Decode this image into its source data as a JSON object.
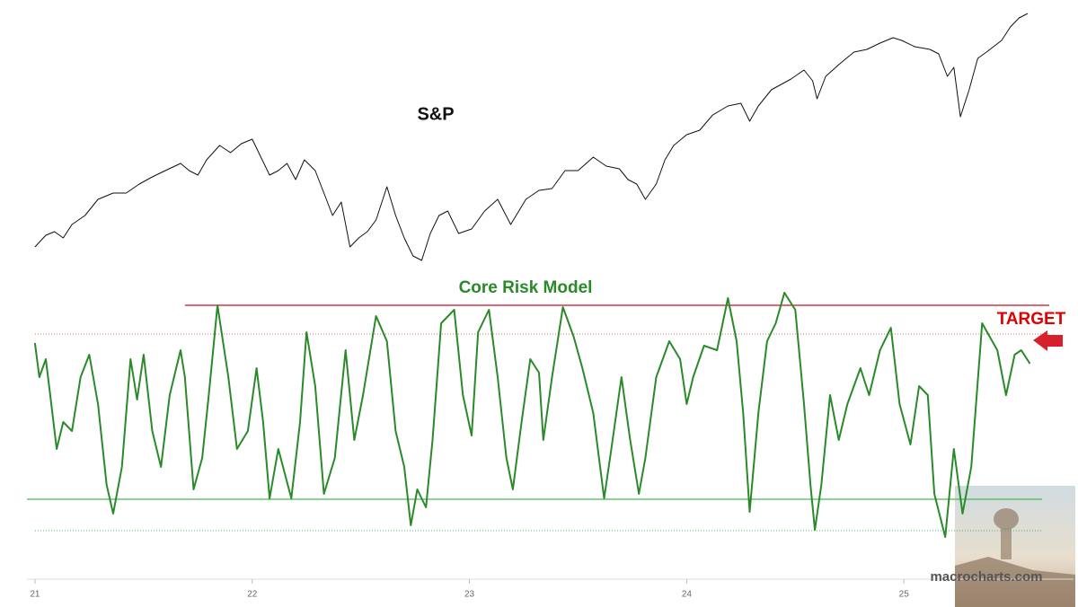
{
  "chart_data": [
    {
      "type": "line",
      "title": "S&P",
      "xlim": [
        20.963,
        25.636
      ],
      "ylim": [
        0,
        300
      ],
      "series": [
        {
          "name": "S&P",
          "color": "#111111",
          "x": [
            21.0,
            21.05,
            21.09,
            21.13,
            21.17,
            21.23,
            21.29,
            21.36,
            21.42,
            21.48,
            21.54,
            21.6,
            21.67,
            21.71,
            21.75,
            21.79,
            21.85,
            21.9,
            21.95,
            22.0,
            22.03,
            22.08,
            22.12,
            22.16,
            22.2,
            22.24,
            22.29,
            22.33,
            22.37,
            22.41,
            22.45,
            22.49,
            22.53,
            22.57,
            22.62,
            22.66,
            22.7,
            22.74,
            22.78,
            22.82,
            22.86,
            22.9,
            22.95,
            23.01,
            23.07,
            23.13,
            23.19,
            23.26,
            23.32,
            23.38,
            23.44,
            23.5,
            23.57,
            23.63,
            23.69,
            23.73,
            23.77,
            23.81,
            23.86,
            23.9,
            23.94,
            24.0,
            24.06,
            24.12,
            24.19,
            24.25,
            24.29,
            24.33,
            24.39,
            24.48,
            24.54,
            24.58,
            24.6,
            24.64,
            24.7,
            24.77,
            24.83,
            24.89,
            24.95,
            24.99,
            25.05,
            25.12,
            25.16,
            25.2,
            25.23,
            25.26,
            25.3,
            25.34,
            25.38,
            25.45,
            25.49,
            25.53,
            25.57
          ],
          "values": [
            25,
            38,
            42,
            35,
            50,
            60,
            78,
            85,
            85,
            95,
            103,
            110,
            118,
            110,
            105,
            122,
            138,
            130,
            140,
            145,
            130,
            105,
            110,
            118,
            100,
            122,
            110,
            85,
            60,
            75,
            25,
            35,
            42,
            55,
            92,
            60,
            35,
            15,
            10,
            40,
            60,
            65,
            40,
            45,
            65,
            78,
            50,
            78,
            88,
            90,
            110,
            110,
            125,
            115,
            112,
            100,
            95,
            78,
            95,
            122,
            138,
            150,
            155,
            172,
            182,
            185,
            165,
            182,
            200,
            212,
            222,
            210,
            190,
            215,
            228,
            242,
            245,
            252,
            258,
            255,
            248,
            245,
            240,
            215,
            225,
            170,
            200,
            235,
            242,
            255,
            270,
            280,
            285
          ]
        }
      ]
    },
    {
      "type": "line",
      "title": "Core Risk Model",
      "xlim": [
        20.963,
        25.636
      ],
      "ylim": [
        0,
        300
      ],
      "xticks": [
        21,
        22,
        23,
        24,
        25
      ],
      "series": [
        {
          "name": "Core Risk Model",
          "color": "#2a8a2a",
          "x": [
            21.0,
            21.02,
            21.05,
            21.07,
            21.1,
            21.13,
            21.17,
            21.21,
            21.25,
            21.29,
            21.33,
            21.36,
            21.4,
            21.44,
            21.47,
            21.5,
            21.54,
            21.58,
            21.62,
            21.67,
            21.69,
            21.73,
            21.77,
            21.8,
            21.84,
            21.89,
            21.93,
            21.98,
            22.02,
            22.05,
            22.08,
            22.12,
            22.18,
            22.22,
            22.25,
            22.29,
            22.33,
            22.38,
            22.43,
            22.47,
            22.51,
            22.57,
            22.62,
            22.66,
            22.7,
            22.73,
            22.76,
            22.8,
            22.83,
            22.87,
            22.93,
            22.97,
            23.01,
            23.04,
            23.09,
            23.13,
            23.17,
            23.2,
            23.24,
            23.28,
            23.32,
            23.34,
            23.38,
            23.43,
            23.48,
            23.52,
            23.57,
            23.62,
            23.65,
            23.7,
            23.74,
            23.78,
            23.81,
            23.86,
            23.92,
            23.97,
            24.0,
            24.03,
            24.08,
            24.14,
            24.19,
            24.23,
            24.26,
            24.29,
            24.33,
            24.37,
            24.41,
            24.45,
            24.5,
            24.54,
            24.57,
            24.59,
            24.62,
            24.66,
            24.7,
            24.74,
            24.8,
            24.84,
            24.89,
            24.94,
            24.98,
            25.03,
            25.07,
            25.11,
            25.14,
            25.19,
            25.23,
            25.27,
            25.31,
            25.36,
            25.43,
            25.47,
            25.51,
            25.54,
            25.58
          ],
          "values": [
            238,
            200,
            220,
            180,
            120,
            150,
            140,
            200,
            225,
            170,
            80,
            48,
            100,
            220,
            175,
            225,
            140,
            100,
            180,
            230,
            200,
            75,
            110,
            180,
            280,
            200,
            120,
            140,
            210,
            150,
            65,
            120,
            65,
            150,
            250,
            190,
            70,
            110,
            230,
            130,
            180,
            268,
            240,
            140,
            100,
            35,
            75,
            55,
            130,
            260,
            275,
            180,
            135,
            250,
            275,
            200,
            110,
            75,
            150,
            220,
            205,
            130,
            200,
            278,
            245,
            210,
            160,
            65,
            115,
            200,
            130,
            70,
            110,
            200,
            240,
            220,
            170,
            200,
            235,
            230,
            288,
            240,
            160,
            50,
            160,
            240,
            260,
            294,
            275,
            170,
            80,
            30,
            80,
            180,
            130,
            170,
            210,
            180,
            230,
            255,
            170,
            125,
            190,
            180,
            70,
            22,
            120,
            48,
            100,
            260,
            230,
            180,
            225,
            230,
            215
          ]
        }
      ],
      "reference_lines": [
        {
          "value": 280,
          "color": "#cc1122",
          "style": "solid",
          "x_start": 21.69
        },
        {
          "value": 248,
          "color": "#e06666",
          "style": "dotted",
          "x_start": 21.0
        },
        {
          "value": 64,
          "color": "#44bb55",
          "style": "solid",
          "x_start": 20.963
        },
        {
          "value": 29,
          "color": "#55aa66",
          "style": "dotted",
          "x_start": 21.0
        }
      ],
      "annotations": [
        {
          "text": "TARGET",
          "color": "#e00000"
        }
      ]
    }
  ],
  "watermark": "macrocharts.com"
}
